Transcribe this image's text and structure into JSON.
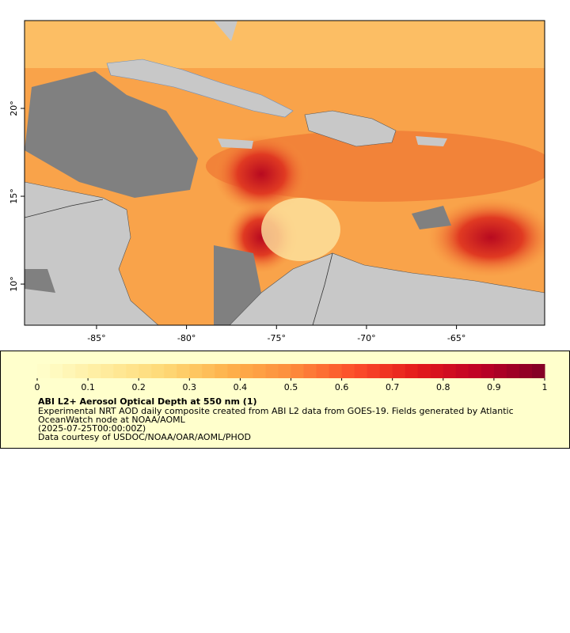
{
  "map": {
    "xlim": [
      -89.0,
      -60.1
    ],
    "ylim": [
      7.66,
      25.0
    ],
    "xticks": [
      {
        "value": -85,
        "label": "-85°"
      },
      {
        "value": -80,
        "label": "-80°"
      },
      {
        "value": -75,
        "label": "-75°"
      },
      {
        "value": -70,
        "label": "-70°"
      },
      {
        "value": -65,
        "label": "-65°"
      }
    ],
    "yticks": [
      {
        "value": 10,
        "label": "10°"
      },
      {
        "value": 15,
        "label": "15°"
      },
      {
        "value": 20,
        "label": "20°"
      }
    ]
  },
  "colorbar": {
    "range": [
      0,
      1
    ],
    "ticks": [
      0,
      0.1,
      0.2,
      0.3,
      0.4,
      0.5,
      0.6,
      0.7,
      0.8,
      0.9,
      1
    ],
    "colors": [
      "#ffffcc",
      "#ffeda0",
      "#fed976",
      "#feb24c",
      "#fd8d3c",
      "#fc4e2a",
      "#e31a1c",
      "#bd0026",
      "#800026"
    ]
  },
  "legend": {
    "title": "ABI L2+ Aerosol Optical Depth at 550 nm (1)",
    "lines": [
      "Experimental NRT AOD daily composite created from ABI L2 data from GOES-19. Fields generated by Atlantic",
      "OceanWatch node at NOAA/AOML",
      "(2025-07-25T00:00:00Z)",
      "Data courtesy of USDOC/NOAA/OAR/AOML/PHOD"
    ]
  }
}
